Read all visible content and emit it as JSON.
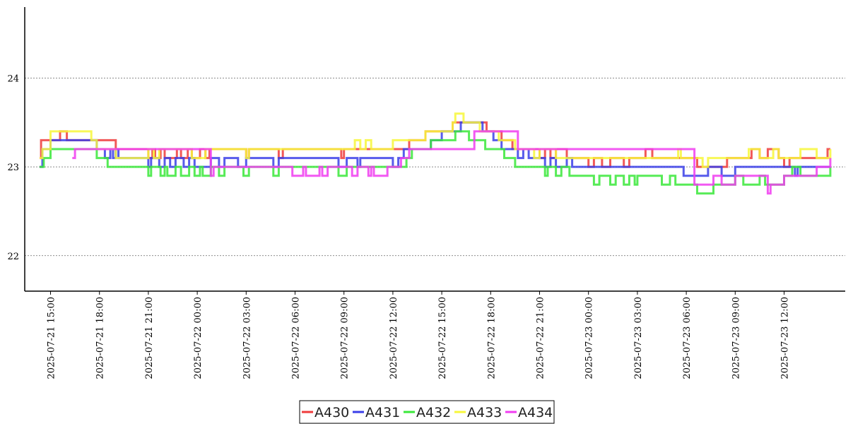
{
  "chart_data": {
    "type": "line",
    "title": "",
    "xlabel": "",
    "ylabel": "",
    "ylim": [
      21.6,
      24.8
    ],
    "xlim": [
      "2025-07-21 13:25",
      "2025-07-23 15:45"
    ],
    "grid": "horizontal dotted",
    "legend_position": "bottom-center",
    "y_ticks": [
      {
        "value": 22,
        "label": "22"
      },
      {
        "value": 23,
        "label": "23"
      },
      {
        "value": 24,
        "label": "24"
      }
    ],
    "x_ticks": [
      {
        "value": "2025-07-21 15:00",
        "label": "2025-07-21 15:00"
      },
      {
        "value": "2025-07-21 18:00",
        "label": "2025-07-21 18:00"
      },
      {
        "value": "2025-07-21 21:00",
        "label": "2025-07-21 21:00"
      },
      {
        "value": "2025-07-22 00:00",
        "label": "2025-07-22 00:00"
      },
      {
        "value": "2025-07-22 03:00",
        "label": "2025-07-22 03:00"
      },
      {
        "value": "2025-07-22 06:00",
        "label": "2025-07-22 06:00"
      },
      {
        "value": "2025-07-22 09:00",
        "label": "2025-07-22 09:00"
      },
      {
        "value": "2025-07-22 12:00",
        "label": "2025-07-22 12:00"
      },
      {
        "value": "2025-07-22 15:00",
        "label": "2025-07-22 15:00"
      },
      {
        "value": "2025-07-22 18:00",
        "label": "2025-07-22 18:00"
      },
      {
        "value": "2025-07-22 21:00",
        "label": "2025-07-22 21:00"
      },
      {
        "value": "2025-07-23 00:00",
        "label": "2025-07-23 00:00"
      },
      {
        "value": "2025-07-23 03:00",
        "label": "2025-07-23 03:00"
      },
      {
        "value": "2025-07-23 06:00",
        "label": "2025-07-23 06:00"
      },
      {
        "value": "2025-07-23 09:00",
        "label": "2025-07-23 09:00"
      },
      {
        "value": "2025-07-23 12:00",
        "label": "2025-07-23 12:00"
      }
    ],
    "series": [
      {
        "name": "A430",
        "color": "#ef3b3b",
        "points": [
          [
            "2025-07-21 14:20",
            23.1
          ],
          [
            "2025-07-21 14:25",
            23.3
          ],
          [
            "2025-07-21 15:35",
            23.4
          ],
          [
            "2025-07-21 16:00",
            23.3
          ],
          [
            "2025-07-21 19:00",
            23.2
          ],
          [
            "2025-07-21 21:00",
            23.1
          ],
          [
            "2025-07-21 21:15",
            23.2
          ],
          [
            "2025-07-21 21:25",
            23.1
          ],
          [
            "2025-07-21 21:45",
            23.2
          ],
          [
            "2025-07-21 22:00",
            23.1
          ],
          [
            "2025-07-21 22:45",
            23.2
          ],
          [
            "2025-07-21 23:00",
            23.1
          ],
          [
            "2025-07-21 23:25",
            23.2
          ],
          [
            "2025-07-21 23:40",
            23.1
          ],
          [
            "2025-07-22 00:10",
            23.2
          ],
          [
            "2025-07-22 00:30",
            23.1
          ],
          [
            "2025-07-22 00:45",
            23.2
          ],
          [
            "2025-07-22 03:00",
            23.1
          ],
          [
            "2025-07-22 03:10",
            23.2
          ],
          [
            "2025-07-22 05:00",
            23.1
          ],
          [
            "2025-07-22 05:15",
            23.2
          ],
          [
            "2025-07-22 08:50",
            23.1
          ],
          [
            "2025-07-22 09:00",
            23.2
          ],
          [
            "2025-07-22 13:00",
            23.3
          ],
          [
            "2025-07-22 14:00",
            23.4
          ],
          [
            "2025-07-22 15:40",
            23.5
          ],
          [
            "2025-07-22 17:45",
            23.4
          ],
          [
            "2025-07-22 18:40",
            23.3
          ],
          [
            "2025-07-22 19:20",
            23.2
          ],
          [
            "2025-07-22 21:00",
            23.1
          ],
          [
            "2025-07-22 21:20",
            23.2
          ],
          [
            "2025-07-22 21:40",
            23.1
          ],
          [
            "2025-07-22 22:00",
            23.2
          ],
          [
            "2025-07-22 22:40",
            23.1
          ],
          [
            "2025-07-23 00:00",
            23.0
          ],
          [
            "2025-07-23 00:20",
            23.1
          ],
          [
            "2025-07-23 00:50",
            23.0
          ],
          [
            "2025-07-23 01:20",
            23.1
          ],
          [
            "2025-07-23 02:10",
            23.0
          ],
          [
            "2025-07-23 02:30",
            23.1
          ],
          [
            "2025-07-23 03:30",
            23.2
          ],
          [
            "2025-07-23 03:55",
            23.1
          ],
          [
            "2025-07-23 06:40",
            23.0
          ],
          [
            "2025-07-23 08:30",
            23.1
          ],
          [
            "2025-07-23 10:00",
            23.2
          ],
          [
            "2025-07-23 10:30",
            23.1
          ],
          [
            "2025-07-23 11:00",
            23.2
          ],
          [
            "2025-07-23 11:40",
            23.1
          ],
          [
            "2025-07-23 12:00",
            23.0
          ],
          [
            "2025-07-23 12:20",
            23.1
          ],
          [
            "2025-07-23 14:40",
            23.2
          ],
          [
            "2025-07-23 14:50",
            23.2
          ]
        ]
      },
      {
        "name": "A431",
        "color": "#3a3ee8",
        "points": [
          [
            "2025-07-21 14:20",
            23.0
          ],
          [
            "2025-07-21 14:30",
            23.2
          ],
          [
            "2025-07-21 15:00",
            23.3
          ],
          [
            "2025-07-21 17:50",
            23.2
          ],
          [
            "2025-07-21 18:20",
            23.1
          ],
          [
            "2025-07-21 18:40",
            23.2
          ],
          [
            "2025-07-21 18:50",
            23.1
          ],
          [
            "2025-07-21 19:00",
            23.2
          ],
          [
            "2025-07-21 19:10",
            23.1
          ],
          [
            "2025-07-21 21:00",
            23.0
          ],
          [
            "2025-07-21 21:10",
            23.1
          ],
          [
            "2025-07-21 21:40",
            23.0
          ],
          [
            "2025-07-21 22:00",
            23.1
          ],
          [
            "2025-07-21 22:20",
            23.0
          ],
          [
            "2025-07-21 22:40",
            23.1
          ],
          [
            "2025-07-21 23:10",
            23.0
          ],
          [
            "2025-07-21 23:30",
            23.1
          ],
          [
            "2025-07-21 23:50",
            23.0
          ],
          [
            "2025-07-22 00:50",
            23.1
          ],
          [
            "2025-07-22 01:20",
            23.0
          ],
          [
            "2025-07-22 01:40",
            23.1
          ],
          [
            "2025-07-22 02:30",
            23.0
          ],
          [
            "2025-07-22 03:00",
            23.1
          ],
          [
            "2025-07-22 04:40",
            23.0
          ],
          [
            "2025-07-22 05:00",
            23.1
          ],
          [
            "2025-07-22 08:40",
            23.0
          ],
          [
            "2025-07-22 09:10",
            23.1
          ],
          [
            "2025-07-22 09:50",
            23.0
          ],
          [
            "2025-07-22 10:00",
            23.1
          ],
          [
            "2025-07-22 12:00",
            23.0
          ],
          [
            "2025-07-22 12:20",
            23.1
          ],
          [
            "2025-07-22 12:40",
            23.2
          ],
          [
            "2025-07-22 14:20",
            23.3
          ],
          [
            "2025-07-22 15:00",
            23.4
          ],
          [
            "2025-07-22 16:10",
            23.5
          ],
          [
            "2025-07-22 17:30",
            23.4
          ],
          [
            "2025-07-22 18:10",
            23.3
          ],
          [
            "2025-07-22 18:40",
            23.2
          ],
          [
            "2025-07-22 19:40",
            23.1
          ],
          [
            "2025-07-22 20:00",
            23.2
          ],
          [
            "2025-07-22 20:20",
            23.1
          ],
          [
            "2025-07-22 21:20",
            23.0
          ],
          [
            "2025-07-22 21:40",
            23.1
          ],
          [
            "2025-07-22 22:00",
            23.0
          ],
          [
            "2025-07-22 22:40",
            23.1
          ],
          [
            "2025-07-22 23:00",
            23.0
          ],
          [
            "2025-07-23 05:50",
            22.9
          ],
          [
            "2025-07-23 07:20",
            23.0
          ],
          [
            "2025-07-23 08:10",
            22.9
          ],
          [
            "2025-07-23 09:00",
            23.0
          ],
          [
            "2025-07-23 12:40",
            22.9
          ],
          [
            "2025-07-23 12:50",
            23.0
          ],
          [
            "2025-07-23 14:50",
            23.0
          ]
        ]
      },
      {
        "name": "A432",
        "color": "#3ae83a",
        "points": [
          [
            "2025-07-21 14:20",
            23.0
          ],
          [
            "2025-07-21 14:35",
            23.1
          ],
          [
            "2025-07-21 15:00",
            23.2
          ],
          [
            "2025-07-21 17:50",
            23.1
          ],
          [
            "2025-07-21 18:30",
            23.0
          ],
          [
            "2025-07-21 21:00",
            22.9
          ],
          [
            "2025-07-21 21:10",
            23.0
          ],
          [
            "2025-07-21 21:45",
            22.9
          ],
          [
            "2025-07-21 22:00",
            23.0
          ],
          [
            "2025-07-21 22:10",
            22.9
          ],
          [
            "2025-07-21 22:40",
            23.0
          ],
          [
            "2025-07-21 23:00",
            22.9
          ],
          [
            "2025-07-21 23:30",
            23.0
          ],
          [
            "2025-07-21 23:50",
            22.9
          ],
          [
            "2025-07-22 00:10",
            23.0
          ],
          [
            "2025-07-22 00:20",
            22.9
          ],
          [
            "2025-07-22 00:50",
            23.0
          ],
          [
            "2025-07-22 01:20",
            22.9
          ],
          [
            "2025-07-22 01:40",
            23.0
          ],
          [
            "2025-07-22 02:50",
            22.9
          ],
          [
            "2025-07-22 03:10",
            23.0
          ],
          [
            "2025-07-22 04:40",
            22.9
          ],
          [
            "2025-07-22 05:00",
            23.0
          ],
          [
            "2025-07-22 08:40",
            22.9
          ],
          [
            "2025-07-22 09:10",
            23.0
          ],
          [
            "2025-07-22 12:50",
            23.1
          ],
          [
            "2025-07-22 13:10",
            23.2
          ],
          [
            "2025-07-22 14:20",
            23.3
          ],
          [
            "2025-07-22 15:50",
            23.4
          ],
          [
            "2025-07-22 16:40",
            23.3
          ],
          [
            "2025-07-22 17:40",
            23.2
          ],
          [
            "2025-07-22 18:50",
            23.1
          ],
          [
            "2025-07-22 19:30",
            23.0
          ],
          [
            "2025-07-22 21:20",
            22.9
          ],
          [
            "2025-07-22 21:30",
            23.0
          ],
          [
            "2025-07-22 22:00",
            22.9
          ],
          [
            "2025-07-22 22:20",
            23.0
          ],
          [
            "2025-07-22 22:50",
            22.9
          ],
          [
            "2025-07-23 00:20",
            22.8
          ],
          [
            "2025-07-23 00:40",
            22.9
          ],
          [
            "2025-07-23 01:20",
            22.8
          ],
          [
            "2025-07-23 01:40",
            22.9
          ],
          [
            "2025-07-23 02:10",
            22.8
          ],
          [
            "2025-07-23 02:30",
            22.9
          ],
          [
            "2025-07-23 02:50",
            22.8
          ],
          [
            "2025-07-23 03:00",
            22.9
          ],
          [
            "2025-07-23 04:30",
            22.8
          ],
          [
            "2025-07-23 05:00",
            22.9
          ],
          [
            "2025-07-23 05:20",
            22.8
          ],
          [
            "2025-07-23 06:40",
            22.7
          ],
          [
            "2025-07-23 07:40",
            22.8
          ],
          [
            "2025-07-23 09:00",
            22.9
          ],
          [
            "2025-07-23 09:30",
            22.8
          ],
          [
            "2025-07-23 10:30",
            22.9
          ],
          [
            "2025-07-23 10:50",
            22.8
          ],
          [
            "2025-07-23 12:00",
            22.9
          ],
          [
            "2025-07-23 12:30",
            23.0
          ],
          [
            "2025-07-23 13:00",
            22.9
          ],
          [
            "2025-07-23 14:50",
            23.0
          ]
        ]
      },
      {
        "name": "A433",
        "color": "#f7f73a",
        "points": [
          [
            "2025-07-21 14:20",
            23.1
          ],
          [
            "2025-07-21 14:30",
            23.2
          ],
          [
            "2025-07-21 15:00",
            23.4
          ],
          [
            "2025-07-21 17:30",
            23.3
          ],
          [
            "2025-07-21 17:50",
            23.2
          ],
          [
            "2025-07-21 19:00",
            23.1
          ],
          [
            "2025-07-21 21:00",
            23.2
          ],
          [
            "2025-07-21 21:20",
            23.1
          ],
          [
            "2025-07-21 21:40",
            23.2
          ],
          [
            "2025-07-21 23:40",
            23.1
          ],
          [
            "2025-07-22 00:30",
            23.2
          ],
          [
            "2025-07-22 03:00",
            23.1
          ],
          [
            "2025-07-22 03:10",
            23.2
          ],
          [
            "2025-07-22 09:40",
            23.3
          ],
          [
            "2025-07-22 10:00",
            23.2
          ],
          [
            "2025-07-22 10:20",
            23.3
          ],
          [
            "2025-07-22 10:40",
            23.2
          ],
          [
            "2025-07-22 12:00",
            23.3
          ],
          [
            "2025-07-22 13:00",
            23.3
          ],
          [
            "2025-07-22 14:00",
            23.4
          ],
          [
            "2025-07-22 15:40",
            23.5
          ],
          [
            "2025-07-22 15:50",
            23.6
          ],
          [
            "2025-07-22 16:20",
            23.5
          ],
          [
            "2025-07-22 17:20",
            23.4
          ],
          [
            "2025-07-22 18:30",
            23.3
          ],
          [
            "2025-07-22 19:30",
            23.2
          ],
          [
            "2025-07-22 20:40",
            23.1
          ],
          [
            "2025-07-22 21:00",
            23.2
          ],
          [
            "2025-07-22 22:00",
            23.1
          ],
          [
            "2025-07-23 05:30",
            23.2
          ],
          [
            "2025-07-23 05:40",
            23.1
          ],
          [
            "2025-07-23 07:00",
            23.0
          ],
          [
            "2025-07-23 07:20",
            23.1
          ],
          [
            "2025-07-23 09:50",
            23.2
          ],
          [
            "2025-07-23 10:30",
            23.1
          ],
          [
            "2025-07-23 11:20",
            23.2
          ],
          [
            "2025-07-23 11:40",
            23.1
          ],
          [
            "2025-07-23 13:00",
            23.2
          ],
          [
            "2025-07-23 14:00",
            23.1
          ],
          [
            "2025-07-23 14:50",
            23.2
          ]
        ]
      },
      {
        "name": "A434",
        "color": "#f03cf0",
        "points": [
          [
            "2025-07-21 16:20",
            23.1
          ],
          [
            "2025-07-21 16:30",
            23.2
          ],
          [
            "2025-07-21 19:00",
            23.2
          ],
          [
            "2025-07-22 00:50",
            22.9
          ],
          [
            "2025-07-22 01:00",
            23.0
          ],
          [
            "2025-07-22 05:50",
            22.9
          ],
          [
            "2025-07-22 06:30",
            23.0
          ],
          [
            "2025-07-22 06:40",
            22.9
          ],
          [
            "2025-07-22 07:30",
            23.0
          ],
          [
            "2025-07-22 07:40",
            22.9
          ],
          [
            "2025-07-22 08:00",
            23.0
          ],
          [
            "2025-07-22 09:30",
            22.9
          ],
          [
            "2025-07-22 09:50",
            23.0
          ],
          [
            "2025-07-22 10:30",
            22.9
          ],
          [
            "2025-07-22 10:40",
            23.0
          ],
          [
            "2025-07-22 10:50",
            22.9
          ],
          [
            "2025-07-22 11:40",
            23.0
          ],
          [
            "2025-07-22 12:30",
            23.1
          ],
          [
            "2025-07-22 13:00",
            23.2
          ],
          [
            "2025-07-22 17:00",
            23.4
          ],
          [
            "2025-07-22 19:40",
            23.2
          ],
          [
            "2025-07-23 06:30",
            22.8
          ],
          [
            "2025-07-23 07:40",
            22.9
          ],
          [
            "2025-07-23 08:10",
            22.8
          ],
          [
            "2025-07-23 09:00",
            22.9
          ],
          [
            "2025-07-23 11:00",
            22.7
          ],
          [
            "2025-07-23 11:10",
            22.8
          ],
          [
            "2025-07-23 12:00",
            22.9
          ],
          [
            "2025-07-23 13:00",
            22.9
          ],
          [
            "2025-07-23 14:00",
            23.0
          ],
          [
            "2025-07-23 14:50",
            23.1
          ]
        ]
      }
    ]
  }
}
